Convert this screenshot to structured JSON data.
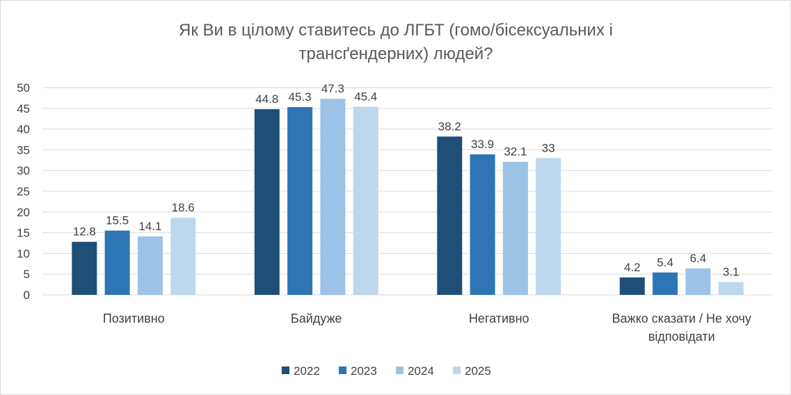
{
  "chart_data": {
    "type": "bar",
    "title_lines": [
      "Як Ви в цілому ставитесь до ЛГБТ (гомо/бісексуальних і",
      "трансґендерних) людей?"
    ],
    "categories": [
      [
        "Позитивно"
      ],
      [
        "Байдуже"
      ],
      [
        "Негативно"
      ],
      [
        "Важко сказати / Не хочу",
        "відповідати"
      ]
    ],
    "series": [
      {
        "name": "2022",
        "color": "#1f4e79",
        "values": [
          12.8,
          44.8,
          38.2,
          4.2
        ],
        "labels": [
          "12.8",
          "44.8",
          "38.2",
          "4.2"
        ]
      },
      {
        "name": "2023",
        "color": "#2e75b6",
        "values": [
          15.5,
          45.3,
          33.9,
          5.4
        ],
        "labels": [
          "15.5",
          "45.3",
          "33.9",
          "5.4"
        ]
      },
      {
        "name": "2024",
        "color": "#9dc3e6",
        "values": [
          14.1,
          47.3,
          32.1,
          6.4
        ],
        "labels": [
          "14.1",
          "47.3",
          "32.1",
          "6.4"
        ]
      },
      {
        "name": "2025",
        "color": "#bdd7ee",
        "values": [
          18.6,
          45.4,
          33,
          3.1
        ],
        "labels": [
          "18.6",
          "45.4",
          "33",
          "3.1"
        ]
      }
    ],
    "ylim": [
      0,
      50
    ],
    "yticks": [
      "0",
      "5",
      "10",
      "15",
      "20",
      "25",
      "30",
      "35",
      "40",
      "45",
      "50"
    ],
    "grid": true,
    "gridline_color": "#d9d9d9",
    "legend_position": "bottom"
  }
}
